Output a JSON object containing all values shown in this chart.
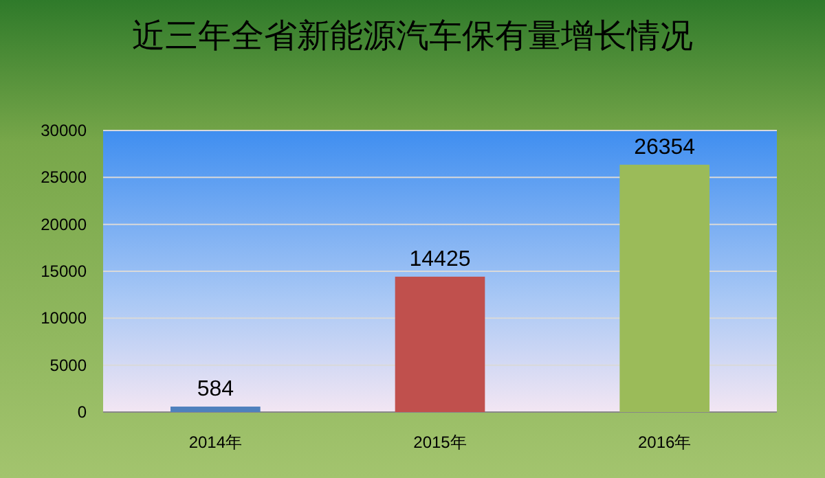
{
  "chart_data": {
    "type": "bar",
    "title": "近三年全省新能源汽车保有量增长情况",
    "categories": [
      "2014年",
      "2015年",
      "2016年"
    ],
    "values": [
      584,
      14425,
      26354
    ],
    "colors": [
      "#4f81bd",
      "#c0504d",
      "#9bbb59"
    ],
    "ylim": [
      0,
      30000
    ],
    "yticks": [
      0,
      5000,
      10000,
      15000,
      20000,
      25000,
      30000
    ],
    "grid": "y",
    "data_labels": true
  }
}
